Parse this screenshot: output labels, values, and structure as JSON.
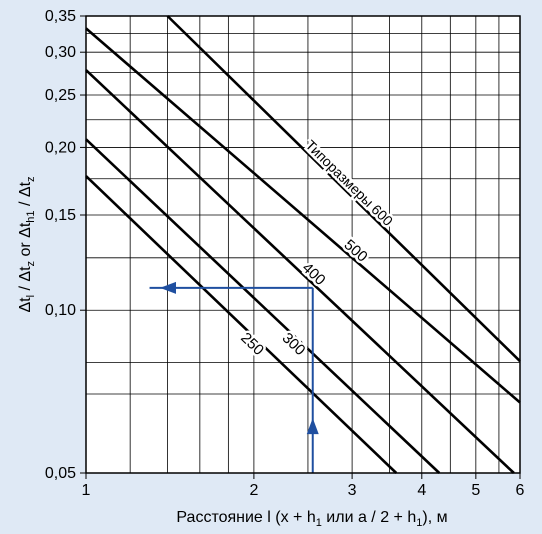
{
  "chart_data": {
    "type": "line",
    "x_scale": "log",
    "y_scale": "log",
    "xlim": [
      1,
      6
    ],
    "ylim": [
      0.05,
      0.35
    ],
    "grid": true,
    "x_ticks": [
      1,
      2,
      3,
      4,
      5,
      6
    ],
    "x_tick_labels": [
      "1",
      "2",
      "3",
      "4",
      "5",
      "6"
    ],
    "y_ticks": [
      0.05,
      0.1,
      0.15,
      0.2,
      0.25,
      0.3,
      0.35
    ],
    "y_tick_labels": [
      "0,05",
      "0,10",
      "0,15",
      "0,20",
      "0,25",
      "0,30",
      "0,35"
    ],
    "x_gridlines": [
      1.2,
      1.4,
      1.6,
      1.8,
      2,
      2.5,
      3,
      3.5,
      4,
      4.5,
      5,
      5.5,
      6
    ],
    "y_gridlines": [
      0.05,
      0.07,
      0.08,
      0.1,
      0.125,
      0.15,
      0.175,
      0.2,
      0.225,
      0.25,
      0.275,
      0.3,
      0.325,
      0.35
    ],
    "ylabel_parts": {
      "a": "Δt",
      "a_sub": "l",
      "b": " / Δt",
      "b_sub": "z",
      "or": " or ",
      "c": "Δt",
      "c_sub": "h1",
      "d": " / Δt",
      "d_sub": "z"
    },
    "xlabel_parts": {
      "pre": "Расстояние l (x + h",
      "sub1": "1",
      "mid": " или a / 2 + h",
      "sub2": "1",
      "post": "), м"
    },
    "series": [
      {
        "label_text": "Типоразмеры 600",
        "points": [
          [
            1.4,
            0.35
          ],
          [
            6,
            0.0805
          ]
        ]
      },
      {
        "label_text": "500",
        "points": [
          [
            1,
            0.332
          ],
          [
            6,
            0.0675
          ]
        ]
      },
      {
        "label_text": "400",
        "points": [
          [
            1,
            0.278
          ],
          [
            5.85,
            0.05
          ]
        ]
      },
      {
        "label_text": "300",
        "points": [
          [
            1,
            0.207
          ],
          [
            4.3,
            0.05
          ]
        ]
      },
      {
        "label_text": "250",
        "points": [
          [
            1,
            0.177
          ],
          [
            3.6,
            0.05
          ]
        ]
      }
    ],
    "annotation": {
      "x": 2.55,
      "y": 0.11,
      "y_start": 0.05,
      "x_end": 1.3
    },
    "colors": {
      "background": "#dfe9f5",
      "plot_area": "#ffffff",
      "grid": "#000000",
      "series": "#000000",
      "arrow": "#1f4fa0"
    }
  }
}
